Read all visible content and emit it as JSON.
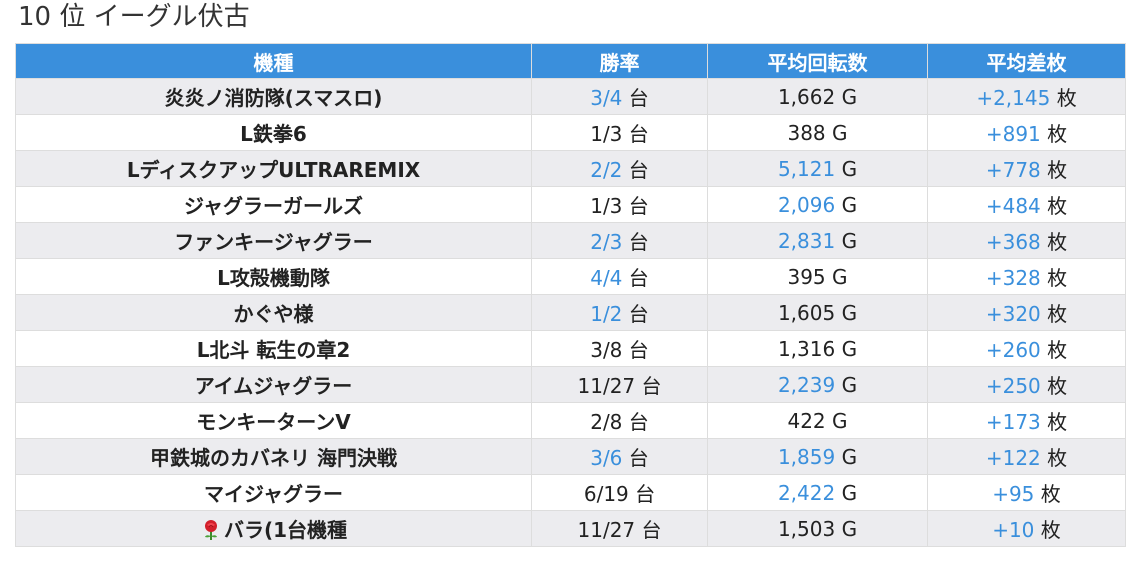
{
  "title": "10 位 イーグル伏古",
  "colors": {
    "header_bg": "#3a8fdc",
    "highlight": "#3a8fdc",
    "row_alt": "#ececef"
  },
  "headers": [
    "機種",
    "勝率",
    "平均回転数",
    "平均差枚"
  ],
  "rows": [
    {
      "name": "炎炎ノ消防隊(スマスロ)",
      "win": "3/4",
      "win_unit": "台",
      "win_hl": true,
      "spins": "1,662",
      "spins_unit": "G",
      "spins_hl": false,
      "diff": "+2,145",
      "diff_unit": "枚"
    },
    {
      "name": "L鉄拳6",
      "win": "1/3",
      "win_unit": "台",
      "win_hl": false,
      "spins": "388",
      "spins_unit": "G",
      "spins_hl": false,
      "diff": "+891",
      "diff_unit": "枚"
    },
    {
      "name": "LディスクアップULTRAREMIX",
      "win": "2/2",
      "win_unit": "台",
      "win_hl": true,
      "spins": "5,121",
      "spins_unit": "G",
      "spins_hl": true,
      "diff": "+778",
      "diff_unit": "枚"
    },
    {
      "name": "ジャグラーガールズ",
      "win": "1/3",
      "win_unit": "台",
      "win_hl": false,
      "spins": "2,096",
      "spins_unit": "G",
      "spins_hl": true,
      "diff": "+484",
      "diff_unit": "枚"
    },
    {
      "name": "ファンキージャグラー",
      "win": "2/3",
      "win_unit": "台",
      "win_hl": true,
      "spins": "2,831",
      "spins_unit": "G",
      "spins_hl": true,
      "diff": "+368",
      "diff_unit": "枚"
    },
    {
      "name": "L攻殻機動隊",
      "win": "4/4",
      "win_unit": "台",
      "win_hl": true,
      "spins": "395",
      "spins_unit": "G",
      "spins_hl": false,
      "diff": "+328",
      "diff_unit": "枚"
    },
    {
      "name": "かぐや様",
      "win": "1/2",
      "win_unit": "台",
      "win_hl": true,
      "spins": "1,605",
      "spins_unit": "G",
      "spins_hl": false,
      "diff": "+320",
      "diff_unit": "枚"
    },
    {
      "name": "L北斗 転生の章2",
      "win": "3/8",
      "win_unit": "台",
      "win_hl": false,
      "spins": "1,316",
      "spins_unit": "G",
      "spins_hl": false,
      "diff": "+260",
      "diff_unit": "枚"
    },
    {
      "name": "アイムジャグラー",
      "win": "11/27",
      "win_unit": "台",
      "win_hl": false,
      "spins": "2,239",
      "spins_unit": "G",
      "spins_hl": true,
      "diff": "+250",
      "diff_unit": "枚"
    },
    {
      "name": "モンキーターンV",
      "win": "2/8",
      "win_unit": "台",
      "win_hl": false,
      "spins": "422",
      "spins_unit": "G",
      "spins_hl": false,
      "diff": "+173",
      "diff_unit": "枚"
    },
    {
      "name": "甲鉄城のカバネリ 海門決戦",
      "win": "3/6",
      "win_unit": "台",
      "win_hl": true,
      "spins": "1,859",
      "spins_unit": "G",
      "spins_hl": true,
      "diff": "+122",
      "diff_unit": "枚"
    },
    {
      "name": "マイジャグラー",
      "win": "6/19",
      "win_unit": "台",
      "win_hl": false,
      "spins": "2,422",
      "spins_unit": "G",
      "spins_hl": true,
      "diff": "+95",
      "diff_unit": "枚"
    },
    {
      "name": "バラ(1台機種",
      "icon": "rose-icon",
      "win": "11/27",
      "win_unit": "台",
      "win_hl": false,
      "spins": "1,503",
      "spins_unit": "G",
      "spins_hl": false,
      "diff": "+10",
      "diff_unit": "枚"
    }
  ]
}
